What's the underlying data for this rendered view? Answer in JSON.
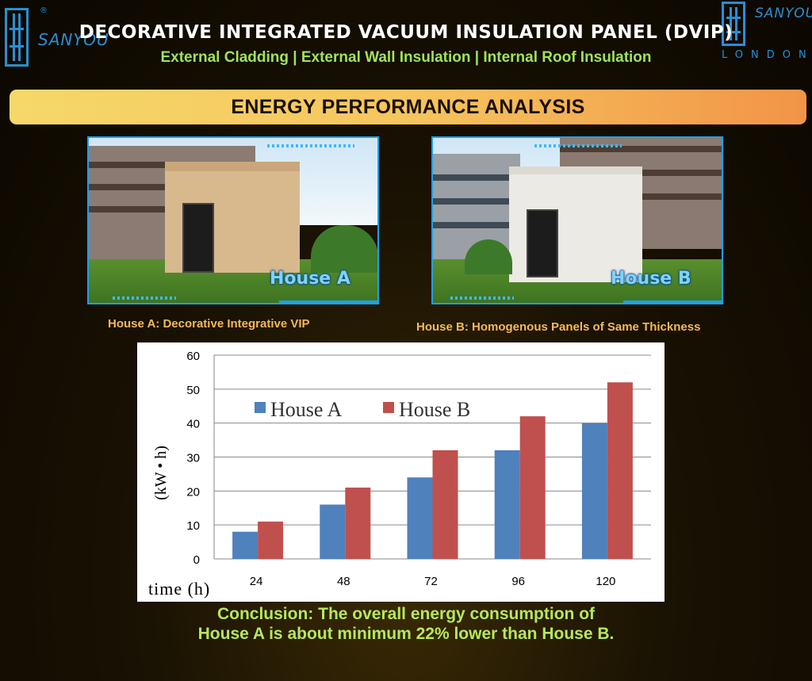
{
  "brand": {
    "left_name": "SANYOU",
    "reg_mark": "®",
    "right_name": "SANYOU",
    "right_sub": "LONDON",
    "color": "#2a8fd0"
  },
  "header": {
    "title": "DECORATIVE INTEGRATED VACUUM INSULATION PANEL (DVIP)",
    "subtitle": "External Cladding | External Wall Insulation |  Internal Roof Insulation"
  },
  "banner": {
    "label": "ENERGY PERFORMANCE ANALYSIS"
  },
  "photos": {
    "house_a": {
      "label": "House A",
      "caption": "House A: Decorative Integrative VIP"
    },
    "house_b": {
      "label": "House B",
      "caption": "House B: Homogenous Panels of Same Thickness"
    }
  },
  "chart_data": {
    "type": "bar",
    "categories": [
      "24",
      "48",
      "72",
      "96",
      "120"
    ],
    "series": [
      {
        "name": "House A",
        "values": [
          8,
          16,
          24,
          32,
          40
        ],
        "color": "#4f81bd"
      },
      {
        "name": "House B",
        "values": [
          11,
          21,
          32,
          42,
          52
        ],
        "color": "#c0504d"
      }
    ],
    "ylim": [
      0,
      60
    ],
    "yticks": [
      0,
      10,
      20,
      30,
      40,
      50,
      60
    ],
    "xlabel": "time (h)",
    "ylabel": "(kW • h)",
    "grid": true,
    "legend": "top-left"
  },
  "conclusion": {
    "line1": "Conclusion: The overall energy consumption of",
    "line2": "House A is about minimum 22% lower than House B."
  }
}
